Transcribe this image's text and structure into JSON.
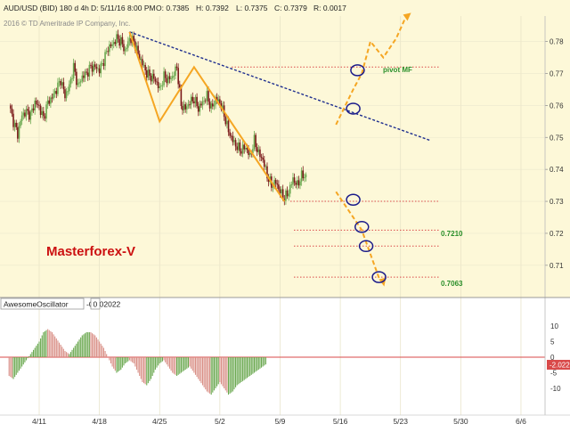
{
  "header": {
    "symbol": "AUD/USD (BID) 180 d 4h",
    "date": "D: 5/11/16 8:00 PM",
    "open": "O: 0.7385",
    "high": "H: 0.7392",
    "low": "L: 0.7375",
    "close": "C: 0.7379",
    "range": "R: 0.0017",
    "copyright": "2016 © TD Ameritrade IP Company, Inc."
  },
  "colors": {
    "price_bg": "#fdf8d8",
    "up_candle": "#6aa84f",
    "down_candle": "#7b1a1a",
    "pattern": "#f5a623",
    "trendline": "#1f2f8f",
    "level": "#d94a4a",
    "circle": "#1a1a8a",
    "osc_up": "#6aa84f",
    "osc_down": "#d98f86",
    "zero_line": "#d94a4a",
    "watermark": "#cc1111",
    "label_green": "#2a8f2a"
  },
  "annotations": {
    "watermark": "Masterforex-V",
    "pivot_label": "pivot MF",
    "level_labels": [
      "0.7210",
      "0.7063"
    ]
  },
  "oscillator": {
    "name": "AwesomeOscillator",
    "value_text": "-0.002022",
    "flag": "0",
    "current_badge": "-2.022",
    "axis_ticks": [
      "10",
      "5",
      "0",
      "-5",
      "-10"
    ]
  },
  "chart_data": [
    {
      "type": "candlestick",
      "title": "AUD/USD (BID) 180 d 4h",
      "x_ticks": [
        "4/11",
        "4/18",
        "4/25",
        "5/2",
        "5/9",
        "5/16",
        "5/23",
        "5/30",
        "6/6"
      ],
      "x_tick_days": [
        0,
        7,
        14,
        21,
        28,
        35,
        42,
        49,
        56
      ],
      "y_ticks": [
        0.71,
        0.72,
        0.73,
        0.74,
        0.75,
        0.76,
        0.77,
        0.78
      ],
      "ylim": [
        0.7016,
        0.7835
      ],
      "close_path": [
        [
          -3.5,
          0.76
        ],
        [
          -3,
          0.755
        ],
        [
          -2.5,
          0.751
        ],
        [
          -2,
          0.757
        ],
        [
          -1.5,
          0.758
        ],
        [
          -1,
          0.757
        ],
        [
          -0.5,
          0.761
        ],
        [
          0,
          0.7595
        ],
        [
          0.5,
          0.756
        ],
        [
          1,
          0.761
        ],
        [
          1.5,
          0.7625
        ],
        [
          2,
          0.765
        ],
        [
          2.5,
          0.768
        ],
        [
          3,
          0.763
        ],
        [
          3.5,
          0.766
        ],
        [
          4,
          0.772
        ],
        [
          4.5,
          0.766
        ],
        [
          5,
          0.769
        ],
        [
          5.5,
          0.77
        ],
        [
          6,
          0.772
        ],
        [
          6.5,
          0.772
        ],
        [
          7,
          0.771
        ],
        [
          7.5,
          0.774
        ],
        [
          8,
          0.778
        ],
        [
          8.5,
          0.779
        ],
        [
          9,
          0.781
        ],
        [
          9.5,
          0.78
        ],
        [
          10,
          0.777
        ],
        [
          10.5,
          0.781
        ],
        [
          11,
          0.78
        ],
        [
          11.5,
          0.776
        ],
        [
          12,
          0.773
        ],
        [
          12.5,
          0.77
        ],
        [
          13,
          0.769
        ],
        [
          13.5,
          0.768
        ],
        [
          14,
          0.765
        ],
        [
          14.5,
          0.769
        ],
        [
          15,
          0.768
        ],
        [
          15.5,
          0.769
        ],
        [
          16,
          0.772
        ],
        [
          16.5,
          0.76
        ],
        [
          17,
          0.759
        ],
        [
          17.5,
          0.761
        ],
        [
          18,
          0.762
        ],
        [
          18.5,
          0.759
        ],
        [
          19,
          0.761
        ],
        [
          19.5,
          0.763
        ],
        [
          20,
          0.759
        ],
        [
          20.5,
          0.762
        ],
        [
          21,
          0.761
        ],
        [
          21.5,
          0.757
        ],
        [
          22,
          0.752
        ],
        [
          22.5,
          0.749
        ],
        [
          23,
          0.747
        ],
        [
          23.5,
          0.746
        ],
        [
          24,
          0.747
        ],
        [
          24.5,
          0.744
        ],
        [
          25,
          0.749
        ],
        [
          25.5,
          0.745
        ],
        [
          26,
          0.743
        ],
        [
          26.5,
          0.738
        ],
        [
          27,
          0.735
        ],
        [
          27.5,
          0.736
        ],
        [
          28,
          0.733
        ],
        [
          28.5,
          0.731
        ],
        [
          29,
          0.733
        ],
        [
          29.5,
          0.737
        ],
        [
          30,
          0.735
        ],
        [
          30.5,
          0.738
        ],
        [
          31,
          0.7379
        ]
      ],
      "support_resistance_levels": [
        {
          "price": 0.772,
          "label": "pivot MF"
        },
        {
          "price": 0.73,
          "label": ""
        },
        {
          "price": 0.721,
          "label": "0.7210"
        },
        {
          "price": 0.716,
          "label": ""
        },
        {
          "price": 0.7063,
          "label": "0.7063"
        }
      ],
      "trendline": [
        [
          10.5,
          0.783
        ],
        [
          45.5,
          0.749
        ]
      ],
      "pattern_zigzag": [
        [
          10.5,
          0.783
        ],
        [
          14,
          0.755
        ],
        [
          18,
          0.772
        ],
        [
          28.5,
          0.73
        ]
      ],
      "projection_up": [
        [
          34.5,
          0.754
        ],
        [
          36.5,
          0.765
        ],
        [
          37.5,
          0.77
        ],
        [
          38.5,
          0.78
        ],
        [
          40,
          0.775
        ],
        [
          41.5,
          0.781
        ],
        [
          42.5,
          0.787
        ]
      ],
      "projection_down": [
        [
          34.5,
          0.733
        ],
        [
          37.5,
          0.721
        ],
        [
          39.5,
          0.706
        ],
        [
          40,
          0.7045
        ]
      ],
      "marked_points": [
        [
          37,
          0.771
        ],
        [
          36.5,
          0.759
        ],
        [
          36.5,
          0.7305
        ],
        [
          37.5,
          0.722
        ],
        [
          38,
          0.716
        ],
        [
          39.5,
          0.7063
        ]
      ]
    },
    {
      "type": "bar",
      "title": "AwesomeOscillator",
      "ylim": [
        -14,
        14
      ],
      "y_ticks": [
        10,
        5,
        0,
        -5,
        -10
      ],
      "x_start_day": -3.5,
      "x_step_days": 0.5,
      "values": [
        -6,
        -7,
        -5,
        -3,
        -1,
        1,
        3,
        5,
        8,
        9,
        8,
        6,
        4,
        2,
        1,
        3,
        5,
        7,
        8,
        8,
        7,
        5,
        3,
        0,
        -3,
        -5,
        -4,
        -2,
        -1,
        -2,
        -5,
        -8,
        -9,
        -7,
        -4,
        -2,
        -1,
        -3,
        -5,
        -6,
        -5,
        -4,
        -3,
        -5,
        -7,
        -9,
        -11,
        -12,
        -10,
        -8,
        -10,
        -12,
        -11,
        -9,
        -8,
        -7,
        -6,
        -5,
        -4,
        -3,
        -2
      ]
    }
  ]
}
